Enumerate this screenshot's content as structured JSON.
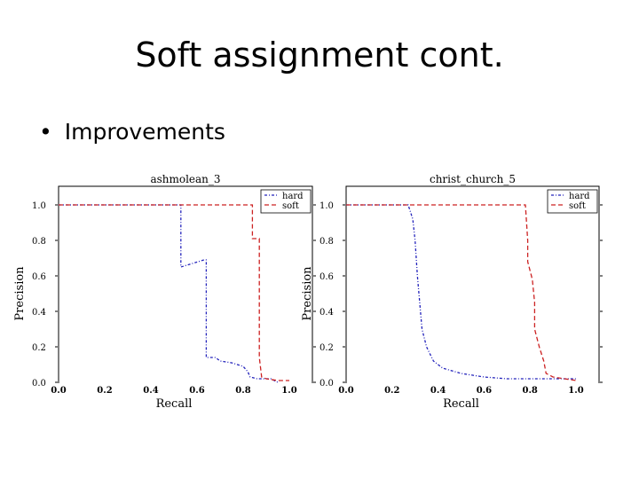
{
  "slide": {
    "title": "Soft assignment cont.",
    "bullet": "Improvements"
  },
  "colors": {
    "hard": "#2222bb",
    "soft": "#cc2222"
  },
  "chart_data": [
    {
      "type": "line",
      "title": "ashmolean_3",
      "xlabel": "Recall",
      "ylabel": "Precision",
      "xlim": [
        0,
        1
      ],
      "ylim": [
        0,
        1
      ],
      "xticks": [
        "0.0",
        "0.2",
        "0.4",
        "0.6",
        "0.8",
        "1.0"
      ],
      "yticks": [
        "0.0",
        "0.2",
        "0.4",
        "0.6",
        "0.8",
        "1.0"
      ],
      "legend_position": "top-right",
      "series": [
        {
          "name": "hard",
          "points": [
            [
              0,
              1.0
            ],
            [
              0.53,
              1.0
            ],
            [
              0.53,
              0.65
            ],
            [
              0.58,
              0.67
            ],
            [
              0.63,
              0.69
            ],
            [
              0.64,
              0.69
            ],
            [
              0.64,
              0.14
            ],
            [
              0.68,
              0.14
            ],
            [
              0.7,
              0.12
            ],
            [
              0.75,
              0.11
            ],
            [
              0.8,
              0.09
            ],
            [
              0.82,
              0.06
            ],
            [
              0.83,
              0.03
            ],
            [
              0.86,
              0.02
            ],
            [
              0.92,
              0.02
            ],
            [
              0.95,
              0.0
            ]
          ]
        },
        {
          "name": "soft",
          "points": [
            [
              0,
              1.0
            ],
            [
              0.84,
              1.0
            ],
            [
              0.84,
              0.81
            ],
            [
              0.87,
              0.81
            ],
            [
              0.87,
              0.14
            ],
            [
              0.88,
              0.03
            ],
            [
              0.9,
              0.02
            ],
            [
              0.95,
              0.01
            ],
            [
              1.0,
              0.01
            ]
          ]
        }
      ]
    },
    {
      "type": "line",
      "title": "christ_church_5",
      "xlabel": "Recall",
      "ylabel": "Precision",
      "xlim": [
        0,
        1
      ],
      "ylim": [
        0,
        1
      ],
      "xticks": [
        "0.0",
        "0.2",
        "0.4",
        "0.6",
        "0.8",
        "1.0"
      ],
      "yticks": [
        "0.0",
        "0.2",
        "0.4",
        "0.6",
        "0.8",
        "1.0"
      ],
      "legend_position": "top-right",
      "series": [
        {
          "name": "hard",
          "points": [
            [
              0,
              1.0
            ],
            [
              0.27,
              1.0
            ],
            [
              0.29,
              0.92
            ],
            [
              0.3,
              0.8
            ],
            [
              0.31,
              0.6
            ],
            [
              0.32,
              0.45
            ],
            [
              0.33,
              0.3
            ],
            [
              0.35,
              0.2
            ],
            [
              0.38,
              0.12
            ],
            [
              0.42,
              0.08
            ],
            [
              0.5,
              0.05
            ],
            [
              0.6,
              0.03
            ],
            [
              0.7,
              0.02
            ],
            [
              0.8,
              0.02
            ],
            [
              0.9,
              0.02
            ],
            [
              1.0,
              0.02
            ]
          ]
        },
        {
          "name": "soft",
          "points": [
            [
              0,
              1.0
            ],
            [
              0.78,
              1.0
            ],
            [
              0.79,
              0.8
            ],
            [
              0.79,
              0.68
            ],
            [
              0.81,
              0.58
            ],
            [
              0.82,
              0.45
            ],
            [
              0.82,
              0.3
            ],
            [
              0.84,
              0.2
            ],
            [
              0.86,
              0.12
            ],
            [
              0.87,
              0.05
            ],
            [
              0.9,
              0.03
            ],
            [
              0.95,
              0.02
            ],
            [
              1.0,
              0.01
            ]
          ]
        }
      ]
    }
  ]
}
